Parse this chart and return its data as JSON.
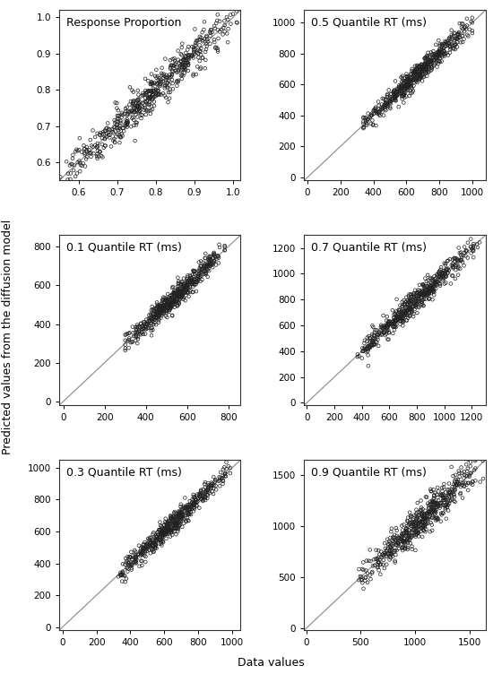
{
  "panels": [
    {
      "title": "Response Proportion",
      "xlim": [
        0.55,
        1.02
      ],
      "ylim": [
        0.55,
        1.02
      ],
      "xticks": [
        0.6,
        0.7,
        0.8,
        0.9,
        1.0
      ],
      "yticks": [
        0.6,
        0.7,
        0.8,
        0.9,
        1.0
      ],
      "xticklabels": [
        "0.6",
        "0.7",
        "0.8",
        "0.9",
        "1.0"
      ],
      "yticklabels": [
        "0.6",
        "0.7",
        "0.8",
        "0.9",
        "1.0"
      ],
      "x_data_min": 0.57,
      "x_data_max": 1.0,
      "y_noise_std": 0.025,
      "n_points": 550,
      "seed": 42
    },
    {
      "title": "0.5 Quantile RT (ms)",
      "xlim": [
        -20,
        1080
      ],
      "ylim": [
        -20,
        1080
      ],
      "xticks": [
        0,
        200,
        400,
        600,
        800,
        1000
      ],
      "yticks": [
        0,
        200,
        400,
        600,
        800,
        1000
      ],
      "xticklabels": [
        "0",
        "200",
        "400",
        "600",
        "800",
        "1000"
      ],
      "yticklabels": [
        "0",
        "200",
        "400",
        "600",
        "800",
        "1000"
      ],
      "x_data_min": 350,
      "x_data_max": 970,
      "y_noise_std": 35,
      "n_points": 550,
      "seed": 43
    },
    {
      "title": "0.1 Quantile RT (ms)",
      "xlim": [
        -20,
        860
      ],
      "ylim": [
        -20,
        860
      ],
      "xticks": [
        0,
        200,
        400,
        600,
        800
      ],
      "yticks": [
        0,
        200,
        400,
        600,
        800
      ],
      "xticklabels": [
        "0",
        "200",
        "400",
        "600",
        "800"
      ],
      "yticklabels": [
        "0",
        "200",
        "400",
        "600",
        "800"
      ],
      "x_data_min": 310,
      "x_data_max": 760,
      "y_noise_std": 28,
      "n_points": 550,
      "seed": 44
    },
    {
      "title": "0.7 Quantile RT (ms)",
      "xlim": [
        -20,
        1300
      ],
      "ylim": [
        -20,
        1300
      ],
      "xticks": [
        0,
        200,
        400,
        600,
        800,
        1000,
        1200
      ],
      "yticks": [
        0,
        200,
        400,
        600,
        800,
        1000,
        1200
      ],
      "xticklabels": [
        "0",
        "200",
        "400",
        "600",
        "800",
        "1000",
        "1200"
      ],
      "yticklabels": [
        "0",
        "200",
        "400",
        "600",
        "800",
        "1000",
        "1200"
      ],
      "x_data_min": 380,
      "x_data_max": 1220,
      "y_noise_std": 45,
      "n_points": 550,
      "seed": 45
    },
    {
      "title": "0.3 Quantile RT (ms)",
      "xlim": [
        -20,
        1050
      ],
      "ylim": [
        -20,
        1050
      ],
      "xticks": [
        0,
        200,
        400,
        600,
        800,
        1000
      ],
      "yticks": [
        0,
        200,
        400,
        600,
        800,
        1000
      ],
      "xticklabels": [
        "0",
        "200",
        "400",
        "600",
        "800",
        "1000"
      ],
      "yticklabels": [
        "0",
        "200",
        "400",
        "600",
        "800",
        "1000"
      ],
      "x_data_min": 340,
      "x_data_max": 960,
      "y_noise_std": 32,
      "n_points": 550,
      "seed": 46
    },
    {
      "title": "0.9 Quantile RT (ms)",
      "xlim": [
        -20,
        1650
      ],
      "ylim": [
        -20,
        1650
      ],
      "xticks": [
        0,
        500,
        1000,
        1500
      ],
      "yticks": [
        0,
        500,
        1000,
        1500
      ],
      "xticklabels": [
        "0",
        "500",
        "1000",
        "1500"
      ],
      "yticklabels": [
        "0",
        "500",
        "1000",
        "1500"
      ],
      "x_data_min": 500,
      "x_data_max": 1580,
      "y_noise_std": 80,
      "n_points": 550,
      "seed": 47
    }
  ],
  "ylabel": "Predicted values from the diffusion model",
  "xlabel": "Data values",
  "figure_bg": "#ffffff",
  "scatter_facecolor": "none",
  "scatter_edgecolor": "#222222",
  "scatter_size": 7,
  "scatter_linewidth": 0.5,
  "diag_color": "#888888",
  "diag_linewidth": 0.8,
  "title_fontsize": 9,
  "tick_fontsize": 7.5,
  "label_fontsize": 9
}
